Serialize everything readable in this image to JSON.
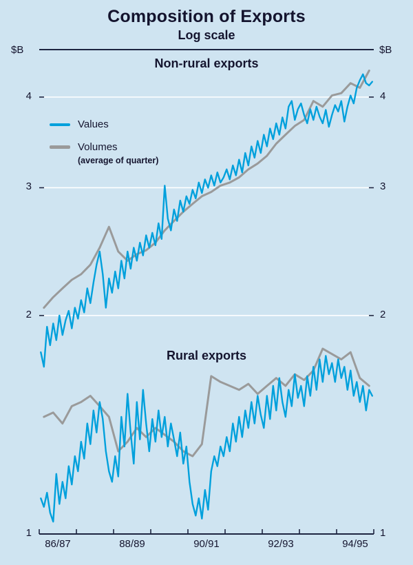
{
  "title": "Composition of Exports",
  "subtitle": "Log scale",
  "axis": {
    "unit": "$B",
    "yticks": [
      1,
      2,
      3,
      4
    ],
    "x_labels": [
      "86/87",
      "88/89",
      "90/91",
      "92/93",
      "94/95"
    ],
    "n_years": 9
  },
  "legend": {
    "values_label": "Values",
    "volumes_label": "Volumes",
    "volumes_note": "(average of quarter)"
  },
  "colors": {
    "background": "#cfe4f1",
    "values": "#00a0dc",
    "volumes": "#9a9a9a",
    "axis": "#1d2440",
    "grid": "#ffffff",
    "text": "#14142e"
  },
  "chart_data": {
    "type": "line",
    "scale": "log",
    "ylim": [
      1,
      4.65
    ],
    "x_domain_months": 108,
    "x_tick_labels": [
      "86/87",
      "88/89",
      "90/91",
      "92/93",
      "94/95"
    ],
    "groups": [
      {
        "label": "Non-rural exports",
        "series": [
          {
            "name": "Volumes (average of quarter)",
            "role": "volumes",
            "cadence": "quarterly",
            "values": [
              2.05,
              2.12,
              2.18,
              2.24,
              2.28,
              2.35,
              2.48,
              2.65,
              2.45,
              2.38,
              2.43,
              2.46,
              2.52,
              2.62,
              2.7,
              2.78,
              2.85,
              2.92,
              2.96,
              3.02,
              3.05,
              3.1,
              3.18,
              3.24,
              3.32,
              3.45,
              3.55,
              3.65,
              3.72,
              3.95,
              3.88,
              4.02,
              4.05,
              4.18,
              4.12,
              4.35
            ]
          },
          {
            "name": "Values",
            "role": "values",
            "cadence": "monthly",
            "values": [
              1.78,
              1.7,
              1.93,
              1.82,
              1.95,
              1.85,
              2.0,
              1.88,
              1.97,
              2.03,
              1.92,
              2.05,
              1.98,
              2.1,
              2.02,
              2.18,
              2.08,
              2.22,
              2.35,
              2.45,
              2.28,
              2.05,
              2.25,
              2.15,
              2.3,
              2.18,
              2.38,
              2.25,
              2.45,
              2.32,
              2.48,
              2.38,
              2.52,
              2.42,
              2.58,
              2.48,
              2.6,
              2.5,
              2.68,
              2.55,
              3.02,
              2.72,
              2.62,
              2.8,
              2.7,
              2.88,
              2.78,
              2.92,
              2.85,
              2.98,
              2.9,
              3.05,
              2.95,
              3.08,
              3.0,
              3.12,
              3.02,
              3.15,
              3.05,
              3.1,
              3.18,
              3.08,
              3.22,
              3.12,
              3.28,
              3.15,
              3.35,
              3.22,
              3.42,
              3.3,
              3.48,
              3.35,
              3.55,
              3.42,
              3.62,
              3.5,
              3.68,
              3.55,
              3.75,
              3.62,
              3.88,
              3.95,
              3.72,
              3.85,
              3.92,
              3.78,
              3.68,
              3.85,
              3.72,
              3.88,
              3.76,
              3.68,
              3.84,
              3.64,
              3.78,
              3.9,
              3.82,
              3.95,
              3.7,
              3.88,
              4.02,
              3.92,
              4.12,
              4.22,
              4.3,
              4.18,
              4.15,
              4.2
            ]
          }
        ]
      },
      {
        "label": "Rural exports",
        "series": [
          {
            "name": "Volumes (average of quarter)",
            "role": "volumes",
            "cadence": "quarterly",
            "values": [
              1.45,
              1.47,
              1.42,
              1.5,
              1.52,
              1.55,
              1.5,
              1.45,
              1.3,
              1.34,
              1.4,
              1.36,
              1.4,
              1.37,
              1.34,
              1.3,
              1.28,
              1.33,
              1.65,
              1.62,
              1.6,
              1.58,
              1.61,
              1.56,
              1.6,
              1.64,
              1.6,
              1.66,
              1.63,
              1.68,
              1.8,
              1.77,
              1.74,
              1.78,
              1.64,
              1.6
            ]
          },
          {
            "name": "Values",
            "role": "values",
            "cadence": "monthly",
            "values": [
              1.12,
              1.09,
              1.14,
              1.07,
              1.04,
              1.21,
              1.1,
              1.18,
              1.12,
              1.24,
              1.17,
              1.28,
              1.22,
              1.34,
              1.27,
              1.42,
              1.33,
              1.48,
              1.38,
              1.52,
              1.44,
              1.3,
              1.22,
              1.18,
              1.28,
              1.2,
              1.45,
              1.32,
              1.56,
              1.38,
              1.25,
              1.52,
              1.35,
              1.58,
              1.42,
              1.3,
              1.44,
              1.34,
              1.48,
              1.36,
              1.45,
              1.32,
              1.42,
              1.35,
              1.28,
              1.38,
              1.25,
              1.32,
              1.18,
              1.1,
              1.06,
              1.12,
              1.05,
              1.15,
              1.08,
              1.22,
              1.28,
              1.24,
              1.32,
              1.28,
              1.36,
              1.3,
              1.42,
              1.34,
              1.45,
              1.36,
              1.48,
              1.4,
              1.52,
              1.42,
              1.55,
              1.46,
              1.4,
              1.55,
              1.44,
              1.6,
              1.48,
              1.64,
              1.52,
              1.45,
              1.58,
              1.5,
              1.66,
              1.54,
              1.6,
              1.5,
              1.65,
              1.55,
              1.7,
              1.58,
              1.74,
              1.62,
              1.76,
              1.66,
              1.72,
              1.62,
              1.74,
              1.64,
              1.7,
              1.58,
              1.68,
              1.55,
              1.62,
              1.52,
              1.6,
              1.48,
              1.58,
              1.55
            ]
          }
        ]
      }
    ]
  }
}
